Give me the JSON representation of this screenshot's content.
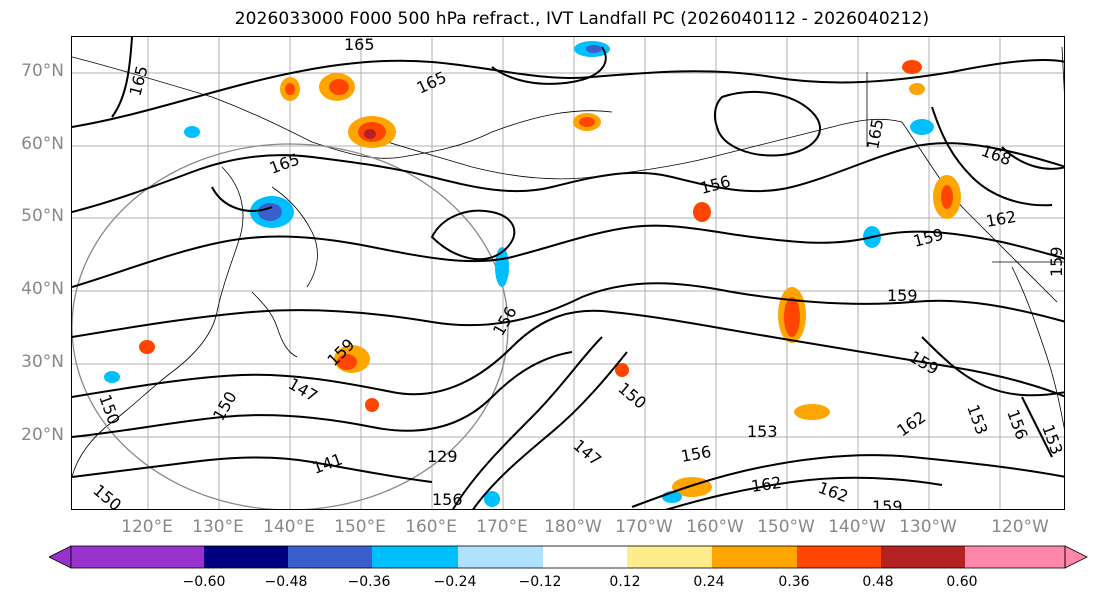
{
  "title": "2026033000 F000 500 hPa refract., IVT Landfall PC (2026040112 - 2026040212)",
  "lat_labels": [
    "70°N",
    "60°N",
    "50°N",
    "40°N",
    "30°N",
    "20°N"
  ],
  "lon_labels": [
    "120°E",
    "130°E",
    "140°E",
    "150°E",
    "160°E",
    "170°E",
    "180°W",
    "170°W",
    "160°W",
    "150°W",
    "140°W",
    "130°W",
    "120°W"
  ],
  "contour_labels": [
    "165",
    "165",
    "165",
    "165",
    "168",
    "165",
    "156",
    "162",
    "159",
    "159",
    "159",
    "159",
    "150",
    "147",
    "141",
    "150",
    "153",
    "156",
    "162",
    "162",
    "159",
    "156",
    "147",
    "150",
    "162",
    "153",
    "153",
    "156",
    "159",
    "129",
    "156",
    "150"
  ],
  "colorbar": {
    "tick_labels": [
      "−0.60",
      "−0.48",
      "−0.36",
      "−0.24",
      "−0.12",
      "0.12",
      "0.24",
      "0.36",
      "0.48",
      "0.60"
    ],
    "colors": [
      "#9932cc",
      "#000080",
      "#3a5fcd",
      "#00bfff",
      "#b0e2ff",
      "#ffffff",
      "#ffec8b",
      "#ffa500",
      "#ff4500",
      "#b22222",
      "#ff88aa",
      "#ff88aa"
    ],
    "underflow_color": "#9932cc",
    "overflow_color": "#ff88aa"
  }
}
